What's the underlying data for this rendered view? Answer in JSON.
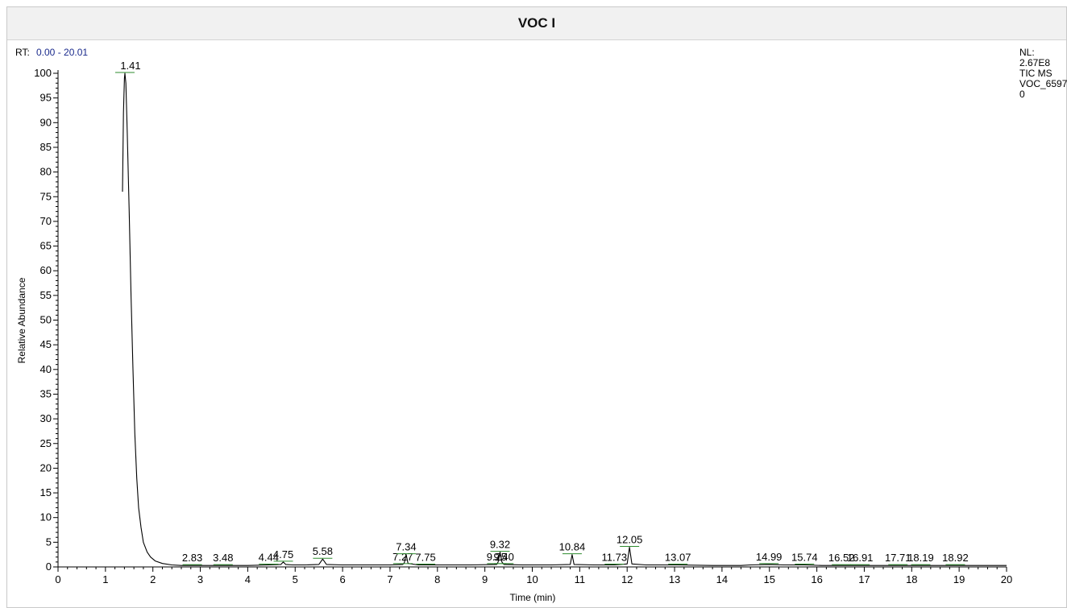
{
  "header": {
    "title": "VOC I"
  },
  "rt_range": {
    "label": "RT:",
    "value": "0.00 - 20.01"
  },
  "info": {
    "lines": [
      "NL:",
      "2.67E8",
      "TIC  MS",
      "VOC_6597",
      "0"
    ]
  },
  "colors": {
    "trace": "#000000",
    "peak_marker": "#2e8b2e",
    "header_bg": "#f1f1f1",
    "rt_value": "#1a2a8c"
  },
  "chart_data": {
    "type": "line",
    "title": "",
    "xlabel": "Time (min)",
    "ylabel": "Relative Abundance",
    "xlim": [
      0,
      20
    ],
    "ylim": [
      0,
      100
    ],
    "x_ticks": [
      0,
      1,
      2,
      3,
      4,
      5,
      6,
      7,
      8,
      9,
      10,
      11,
      12,
      13,
      14,
      15,
      16,
      17,
      18,
      19,
      20
    ],
    "y_ticks": [
      0,
      5,
      10,
      15,
      20,
      25,
      30,
      35,
      40,
      45,
      50,
      55,
      60,
      65,
      70,
      75,
      80,
      85,
      90,
      95,
      100
    ],
    "grid": false,
    "series": [
      {
        "x": [
          1.36,
          1.38,
          1.4,
          1.41,
          1.43,
          1.46,
          1.5,
          1.54,
          1.58,
          1.62,
          1.66,
          1.7,
          1.75,
          1.8,
          1.88,
          1.95,
          2.05,
          2.2,
          2.4,
          2.6,
          2.83,
          3.2,
          3.48,
          4.0,
          4.44,
          4.7,
          4.75,
          4.8,
          4.95,
          5.2,
          5.5,
          5.58,
          5.66,
          6.0,
          6.5,
          7.0,
          7.27,
          7.3,
          7.34,
          7.38,
          7.6,
          7.75,
          8.2,
          8.7,
          9.25,
          9.28,
          9.32,
          9.36,
          9.4,
          9.8,
          10.4,
          10.8,
          10.84,
          10.88,
          11.3,
          11.73,
          12.0,
          12.05,
          12.1,
          12.4,
          13.07,
          13.8,
          14.4,
          14.6,
          14.99,
          15.3,
          15.74,
          16.1,
          16.52,
          16.91,
          17.3,
          17.71,
          18.19,
          18.6,
          18.92,
          19.4,
          20.0
        ],
        "y": [
          76,
          92,
          99,
          100,
          98,
          88,
          72,
          55,
          40,
          27,
          18,
          12,
          8,
          5,
          3,
          2,
          1.2,
          0.7,
          0.4,
          0.3,
          0.3,
          0.3,
          0.3,
          0.3,
          0.4,
          0.5,
          1.0,
          0.5,
          0.4,
          0.4,
          0.5,
          1.6,
          0.5,
          0.4,
          0.4,
          0.4,
          0.5,
          0.8,
          2.5,
          0.7,
          0.4,
          0.4,
          0.4,
          0.4,
          0.5,
          1.0,
          3.0,
          1.0,
          0.5,
          0.4,
          0.4,
          0.5,
          2.5,
          0.5,
          0.4,
          0.4,
          0.6,
          4.0,
          0.6,
          0.4,
          0.4,
          0.3,
          0.3,
          0.4,
          0.5,
          0.4,
          0.4,
          0.3,
          0.3,
          0.3,
          0.3,
          0.3,
          0.3,
          0.3,
          0.3,
          0.3,
          0.3
        ]
      }
    ],
    "peak_labels": [
      {
        "text": "1.41",
        "x": 1.41,
        "y": 100
      },
      {
        "text": "2.83",
        "x": 2.83,
        "y": 0.3
      },
      {
        "text": "3.48",
        "x": 3.48,
        "y": 0.3
      },
      {
        "text": "4.44",
        "x": 4.44,
        "y": 0.4
      },
      {
        "text": "4.75",
        "x": 4.75,
        "y": 1.0
      },
      {
        "text": "5.58",
        "x": 5.58,
        "y": 1.6
      },
      {
        "text": "7.27",
        "x": 7.27,
        "y": 0.5
      },
      {
        "text": "7.34",
        "x": 7.34,
        "y": 2.5
      },
      {
        "text": "7.75",
        "x": 7.75,
        "y": 0.4
      },
      {
        "text": "9.25",
        "x": 9.25,
        "y": 0.5
      },
      {
        "text": "9.32",
        "x": 9.32,
        "y": 3.0
      },
      {
        "text": "9.40",
        "x": 9.4,
        "y": 0.5
      },
      {
        "text": "10.84",
        "x": 10.84,
        "y": 2.5
      },
      {
        "text": "11.73",
        "x": 11.73,
        "y": 0.4
      },
      {
        "text": "12.05",
        "x": 12.05,
        "y": 4.0
      },
      {
        "text": "13.07",
        "x": 13.07,
        "y": 0.4
      },
      {
        "text": "14.99",
        "x": 14.99,
        "y": 0.5
      },
      {
        "text": "15.74",
        "x": 15.74,
        "y": 0.4
      },
      {
        "text": "16.52",
        "x": 16.52,
        "y": 0.3
      },
      {
        "text": "16.91",
        "x": 16.91,
        "y": 0.3
      },
      {
        "text": "17.71",
        "x": 17.71,
        "y": 0.3
      },
      {
        "text": "18.19",
        "x": 18.19,
        "y": 0.3
      },
      {
        "text": "18.92",
        "x": 18.92,
        "y": 0.3
      }
    ]
  }
}
